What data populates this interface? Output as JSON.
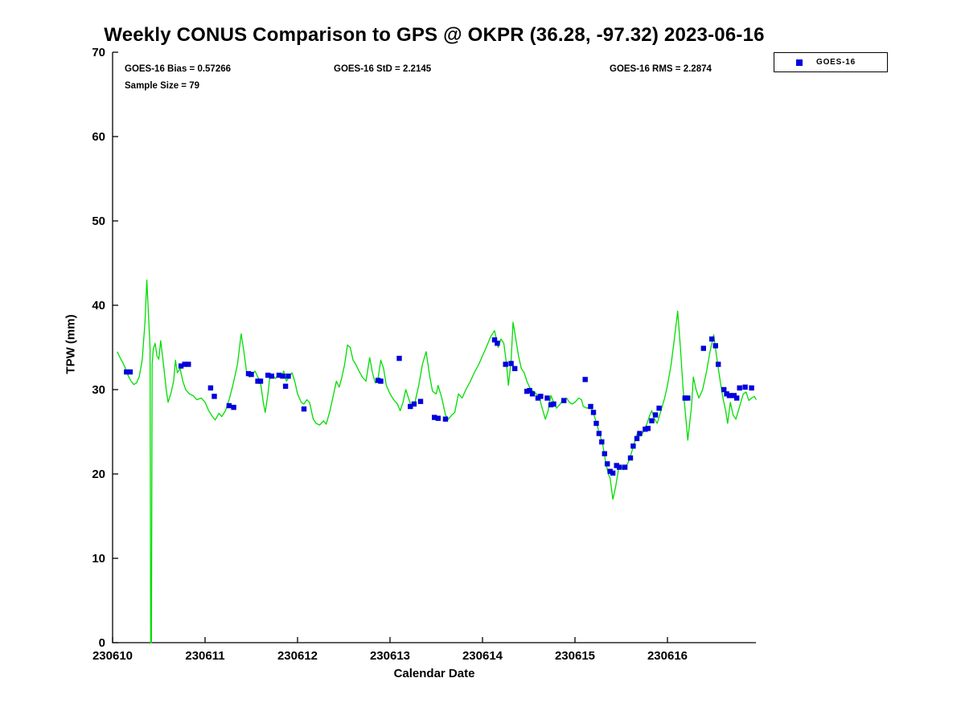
{
  "title": "Weekly CONUS Comparison to GPS @ OKPR (36.28, -97.32) 2023-06-16",
  "stats": {
    "bias_label": "GOES-16 Bias = 0.57266",
    "std_label": "GOES-16 StD = 2.2145",
    "rms_label": "GOES-16 RMS = 2.2874",
    "sample_label": "Sample Size = 79"
  },
  "legend": {
    "entries": [
      {
        "label": "GOES-16",
        "marker": "square",
        "color": "#0000dd"
      }
    ]
  },
  "chart_data": {
    "type": "line+scatter",
    "title": "Weekly CONUS Comparison to GPS @ OKPR (36.28, -97.32) 2023-06-16",
    "xlabel": "Calendar Date",
    "ylabel": "TPW (mm)",
    "ylim": [
      0,
      70
    ],
    "yticks": [
      0,
      10,
      20,
      30,
      40,
      50,
      60,
      70
    ],
    "xticks": [
      "230610",
      "230611",
      "230612",
      "230613",
      "230614",
      "230615",
      "230616"
    ],
    "x_unit": "days since 230610",
    "grid": false,
    "legend_position": "top-right-outside",
    "annotations": [
      "GOES-16 Bias = 0.57266",
      "GOES-16 StD = 2.2145",
      "GOES-16 RMS = 2.2874",
      "Sample Size = 79"
    ],
    "series": [
      {
        "name": "GPS",
        "type": "line",
        "color": "#00dd00",
        "x": [
          0.05,
          0.08,
          0.11,
          0.14,
          0.17,
          0.2,
          0.23,
          0.26,
          0.29,
          0.32,
          0.35,
          0.37,
          0.39,
          0.405,
          0.412,
          0.42,
          0.428,
          0.44,
          0.46,
          0.48,
          0.5,
          0.52,
          0.55,
          0.58,
          0.6,
          0.63,
          0.66,
          0.68,
          0.7,
          0.73,
          0.76,
          0.79,
          0.83,
          0.87,
          0.91,
          0.96,
          1.0,
          1.04,
          1.08,
          1.11,
          1.15,
          1.18,
          1.22,
          1.26,
          1.3,
          1.35,
          1.39,
          1.42,
          1.45,
          1.48,
          1.51,
          1.54,
          1.57,
          1.6,
          1.63,
          1.65,
          1.68,
          1.7,
          1.73,
          1.76,
          1.79,
          1.82,
          1.85,
          1.88,
          1.91,
          1.94,
          1.97,
          2.0,
          2.04,
          2.07,
          2.1,
          2.13,
          2.17,
          2.2,
          2.24,
          2.28,
          2.31,
          2.35,
          2.39,
          2.42,
          2.45,
          2.48,
          2.51,
          2.54,
          2.57,
          2.6,
          2.63,
          2.66,
          2.7,
          2.74,
          2.78,
          2.81,
          2.84,
          2.87,
          2.9,
          2.93,
          2.96,
          3.0,
          3.04,
          3.08,
          3.11,
          3.14,
          3.17,
          3.2,
          3.23,
          3.27,
          3.31,
          3.35,
          3.39,
          3.43,
          3.46,
          3.5,
          3.52,
          3.56,
          3.6,
          3.63,
          3.67,
          3.7,
          3.74,
          3.78,
          3.82,
          3.87,
          3.91,
          3.96,
          4.0,
          4.04,
          4.09,
          4.13,
          4.15,
          4.17,
          4.2,
          4.23,
          4.26,
          4.28,
          4.31,
          4.33,
          4.36,
          4.39,
          4.42,
          4.45,
          4.48,
          4.52,
          4.55,
          4.58,
          4.61,
          4.64,
          4.68,
          4.71,
          4.74,
          4.77,
          4.8,
          4.84,
          4.87,
          4.91,
          4.94,
          4.97,
          5.0,
          5.04,
          5.07,
          5.09,
          5.13,
          5.17,
          5.19,
          5.22,
          5.26,
          5.3,
          5.33,
          5.36,
          5.38,
          5.41,
          5.44,
          5.47,
          5.5,
          5.52,
          5.55,
          5.58,
          5.61,
          5.65,
          5.68,
          5.71,
          5.74,
          5.78,
          5.81,
          5.83,
          5.86,
          5.89,
          5.93,
          5.97,
          6.0,
          6.04,
          6.08,
          6.11,
          6.14,
          6.17,
          6.2,
          6.22,
          6.26,
          6.28,
          6.31,
          6.34,
          6.38,
          6.42,
          6.46,
          6.5,
          6.53,
          6.57,
          6.6,
          6.63,
          6.65,
          6.68,
          6.71,
          6.74,
          6.78,
          6.82,
          6.85,
          6.88,
          6.91,
          6.94,
          6.96
        ],
        "y": [
          34.5,
          33.8,
          33.2,
          32.5,
          31.6,
          31.0,
          30.6,
          30.8,
          31.6,
          33.5,
          38.0,
          43.0,
          38.5,
          35.0,
          0.0,
          0.0,
          33.0,
          34.8,
          35.5,
          34.0,
          33.6,
          35.8,
          33.0,
          30.0,
          28.5,
          29.5,
          31.0,
          33.5,
          32.0,
          32.5,
          31.0,
          30.0,
          29.5,
          29.3,
          28.8,
          29.0,
          28.5,
          27.5,
          26.8,
          26.4,
          27.2,
          26.8,
          27.5,
          28.8,
          30.5,
          33.0,
          36.6,
          34.5,
          32.0,
          31.5,
          31.8,
          32.2,
          31.5,
          30.8,
          28.5,
          27.3,
          29.5,
          31.5,
          31.8,
          31.3,
          31.8,
          31.5,
          32.2,
          31.0,
          31.5,
          32.0,
          31.0,
          29.5,
          28.5,
          28.3,
          28.8,
          28.5,
          26.5,
          26.0,
          25.8,
          26.3,
          25.9,
          27.5,
          29.5,
          31.0,
          30.3,
          31.5,
          33.0,
          35.3,
          35.0,
          33.5,
          33.0,
          32.3,
          31.5,
          31.0,
          33.8,
          32.0,
          30.8,
          31.3,
          33.5,
          32.5,
          30.5,
          29.5,
          28.8,
          28.3,
          27.5,
          28.5,
          30.0,
          29.0,
          28.0,
          28.5,
          30.5,
          33.0,
          34.5,
          31.5,
          29.8,
          29.5,
          30.5,
          29.0,
          27.0,
          26.5,
          27.0,
          27.3,
          29.5,
          29.0,
          30.0,
          31.0,
          32.0,
          33.0,
          34.0,
          35.0,
          36.3,
          37.0,
          36.0,
          35.0,
          36.0,
          35.5,
          33.0,
          30.5,
          33.5,
          38.0,
          36.0,
          34.0,
          32.5,
          32.0,
          31.0,
          30.0,
          29.8,
          29.5,
          29.3,
          28.0,
          26.5,
          27.5,
          29.3,
          28.5,
          27.8,
          28.3,
          28.8,
          29.0,
          28.5,
          28.3,
          28.5,
          29.0,
          28.8,
          28.0,
          27.8,
          28.0,
          27.5,
          26.5,
          25.0,
          23.5,
          21.5,
          20.0,
          19.5,
          17.0,
          18.5,
          20.5,
          21.0,
          20.5,
          20.8,
          21.5,
          22.5,
          24.0,
          25.0,
          24.5,
          25.0,
          26.0,
          27.0,
          27.5,
          26.5,
          26.0,
          27.5,
          29.0,
          30.5,
          33.0,
          36.5,
          39.3,
          35.0,
          30.0,
          26.5,
          24.0,
          28.0,
          31.5,
          30.0,
          29.0,
          30.0,
          32.0,
          34.5,
          36.5,
          34.0,
          31.0,
          29.0,
          27.5,
          26.0,
          28.5,
          27.0,
          26.5,
          28.0,
          29.5,
          29.7,
          28.7,
          29.0,
          29.2,
          28.8
        ]
      },
      {
        "name": "GOES-16",
        "type": "scatter",
        "marker": "square",
        "color": "#0000dd",
        "x": [
          0.15,
          0.19,
          0.74,
          0.78,
          0.82,
          1.06,
          1.1,
          1.26,
          1.31,
          1.47,
          1.5,
          1.57,
          1.6,
          1.68,
          1.72,
          1.8,
          1.84,
          1.87,
          1.9,
          2.07,
          2.87,
          2.9,
          3.1,
          3.22,
          3.26,
          3.33,
          3.48,
          3.52,
          3.6,
          4.13,
          4.16,
          4.25,
          4.31,
          4.35,
          4.48,
          4.51,
          4.54,
          4.6,
          4.63,
          4.7,
          4.74,
          4.77,
          4.88,
          5.11,
          5.17,
          5.2,
          5.23,
          5.26,
          5.29,
          5.32,
          5.35,
          5.38,
          5.41,
          5.45,
          5.48,
          5.54,
          5.6,
          5.63,
          5.67,
          5.7,
          5.76,
          5.79,
          5.83,
          5.87,
          5.91,
          6.19,
          6.22,
          6.39,
          6.48,
          6.52,
          6.55,
          6.61,
          6.64,
          6.67,
          6.72,
          6.75,
          6.78,
          6.84,
          6.91
        ],
        "y": [
          32.1,
          32.1,
          32.8,
          33.0,
          33.0,
          30.2,
          29.2,
          28.1,
          27.9,
          31.9,
          31.8,
          31.0,
          31.0,
          31.7,
          31.6,
          31.7,
          31.6,
          30.4,
          31.6,
          27.7,
          31.1,
          31.0,
          33.7,
          28.0,
          28.3,
          28.6,
          26.7,
          26.6,
          26.5,
          35.9,
          35.5,
          33.0,
          33.1,
          32.5,
          29.8,
          29.9,
          29.5,
          29.0,
          29.2,
          29.0,
          28.2,
          28.3,
          28.7,
          31.2,
          28.0,
          27.3,
          26.0,
          24.8,
          23.8,
          22.4,
          21.2,
          20.3,
          20.1,
          21.0,
          20.8,
          20.8,
          21.9,
          23.3,
          24.2,
          24.8,
          25.3,
          25.4,
          26.3,
          27.0,
          27.8,
          29.0,
          29.0,
          34.9,
          36.0,
          35.2,
          33.0,
          30.0,
          29.5,
          29.3,
          29.3,
          29.0,
          30.2,
          30.3,
          30.2
        ]
      }
    ]
  }
}
